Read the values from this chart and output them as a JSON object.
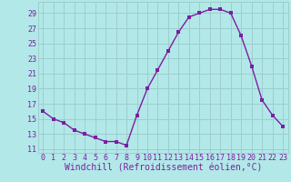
{
  "x": [
    0,
    1,
    2,
    3,
    4,
    5,
    6,
    7,
    8,
    9,
    10,
    11,
    12,
    13,
    14,
    15,
    16,
    17,
    18,
    19,
    20,
    21,
    22,
    23
  ],
  "y": [
    16,
    15,
    14.5,
    13.5,
    13,
    12.5,
    12,
    12,
    11.5,
    15.5,
    19,
    21.5,
    24,
    26.5,
    28.5,
    29,
    29.5,
    29.5,
    29,
    26,
    22,
    17.5,
    15.5,
    14
  ],
  "line_color": "#7B1FA2",
  "marker_color": "#7B1FA2",
  "bg_color": "#b2e8e8",
  "grid_color": "#9ecece",
  "xlabel": "Windchill (Refroidissement éolien,°C)",
  "yticks": [
    11,
    13,
    15,
    17,
    19,
    21,
    23,
    25,
    27,
    29
  ],
  "xticks": [
    0,
    1,
    2,
    3,
    4,
    5,
    6,
    7,
    8,
    9,
    10,
    11,
    12,
    13,
    14,
    15,
    16,
    17,
    18,
    19,
    20,
    21,
    22,
    23
  ],
  "ylim": [
    10.5,
    30.5
  ],
  "xlim": [
    -0.5,
    23.5
  ],
  "xlabel_color": "#7B1FA2",
  "tick_color": "#7B1FA2",
  "xlabel_fontsize": 7,
  "tick_fontsize": 6,
  "linewidth": 1.0,
  "markersize": 2.5
}
